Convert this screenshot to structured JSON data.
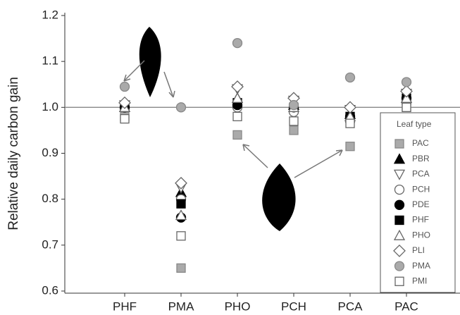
{
  "chart_data": {
    "type": "dot",
    "y_label": "Relative daily carbon gain",
    "categories": [
      "PHF",
      "PMA",
      "PHO",
      "PCH",
      "PCA",
      "PAC"
    ],
    "ylim": [
      0.6,
      1.2
    ],
    "yticks": [
      0.6,
      0.7,
      0.8,
      0.9,
      {
        "value": 1,
        "label": "1.0"
      },
      1.1,
      1.2
    ],
    "reference_line": 1,
    "legend_title": "Leaf type",
    "legend_position": "lower right",
    "series": [
      {
        "name": "PAC",
        "marker": "square",
        "color": "#aaaaaa",
        "values": [
          0.98,
          0.65,
          0.94,
          0.95,
          0.915,
          1.0
        ]
      },
      {
        "name": "PBR",
        "marker": "triangle",
        "color": "#000000",
        "values": [
          1.0,
          0.815,
          1.02,
          1.005,
          0.985,
          1.02
        ]
      },
      {
        "name": "PCA",
        "marker": "triangle-down",
        "color": "#ffffff",
        "values": [
          1.005,
          0.825,
          1.04,
          1.015,
          0.995,
          1.03
        ]
      },
      {
        "name": "PCH",
        "marker": "circle",
        "color": "#ffffff",
        "values": [
          1.0,
          0.8,
          1.0,
          0.99,
          0.97,
          1.01
        ]
      },
      {
        "name": "PDE",
        "marker": "circle",
        "color": "#000000",
        "values": [
          1.0,
          0.76,
          1.005,
          1.0,
          0.98,
          1.02
        ]
      },
      {
        "name": "PHF",
        "marker": "square",
        "color": "#000000",
        "values": [
          1.0,
          0.79,
          1.01,
          1.0,
          0.98,
          1.02
        ]
      },
      {
        "name": "PHO",
        "marker": "triangle",
        "color": "#ffffff",
        "values": [
          1.0,
          0.765,
          1.02,
          1.0,
          0.98,
          1.02
        ]
      },
      {
        "name": "PLI",
        "marker": "diamond",
        "color": "#ffffff",
        "values": [
          1.01,
          0.835,
          1.045,
          1.02,
          1.0,
          1.035
        ]
      },
      {
        "name": "PMA",
        "marker": "circle",
        "color": "#aaaaaa",
        "values": [
          1.045,
          1.0,
          1.14,
          1.005,
          1.065,
          1.055
        ]
      },
      {
        "name": "PMI",
        "marker": "square",
        "color": "#ffffff",
        "values": [
          0.975,
          0.72,
          0.98,
          0.97,
          0.965,
          1.0
        ]
      }
    ]
  }
}
